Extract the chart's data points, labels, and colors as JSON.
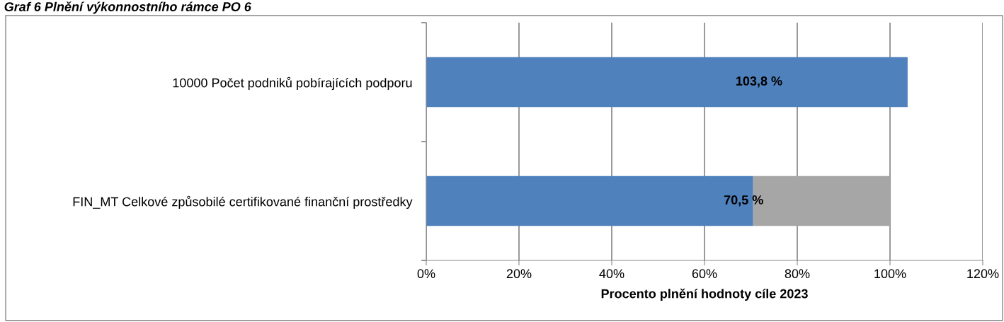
{
  "chart_data": {
    "type": "bar",
    "orientation": "horizontal",
    "stacked": true,
    "title": "Graf 6 Plnění výkonnostního rámce PO 6",
    "xlabel": "Procento plnění hodnoty cíle 2023",
    "categories": [
      "10000 Počet podniků pobírajících podporu",
      "FIN_MT Celkové způsobilé certifikované finanční prostředky"
    ],
    "series": [
      {
        "color": "#4f81bd",
        "values": [
          103.8,
          70.5
        ],
        "value_labels": [
          "103,8 %",
          "70,5 %"
        ]
      },
      {
        "color": "#a6a6a6",
        "values": [
          null,
          29.5
        ]
      }
    ],
    "xlim": [
      0,
      120
    ],
    "xticks": [
      {
        "value": 0,
        "label": "0%"
      },
      {
        "value": 20,
        "label": "20%"
      },
      {
        "value": 40,
        "label": "40%"
      },
      {
        "value": 60,
        "label": "60%"
      },
      {
        "value": 80,
        "label": "80%"
      },
      {
        "value": 100,
        "label": "100%"
      },
      {
        "value": 120,
        "label": "120%"
      }
    ],
    "grid": "x",
    "legend": false
  }
}
